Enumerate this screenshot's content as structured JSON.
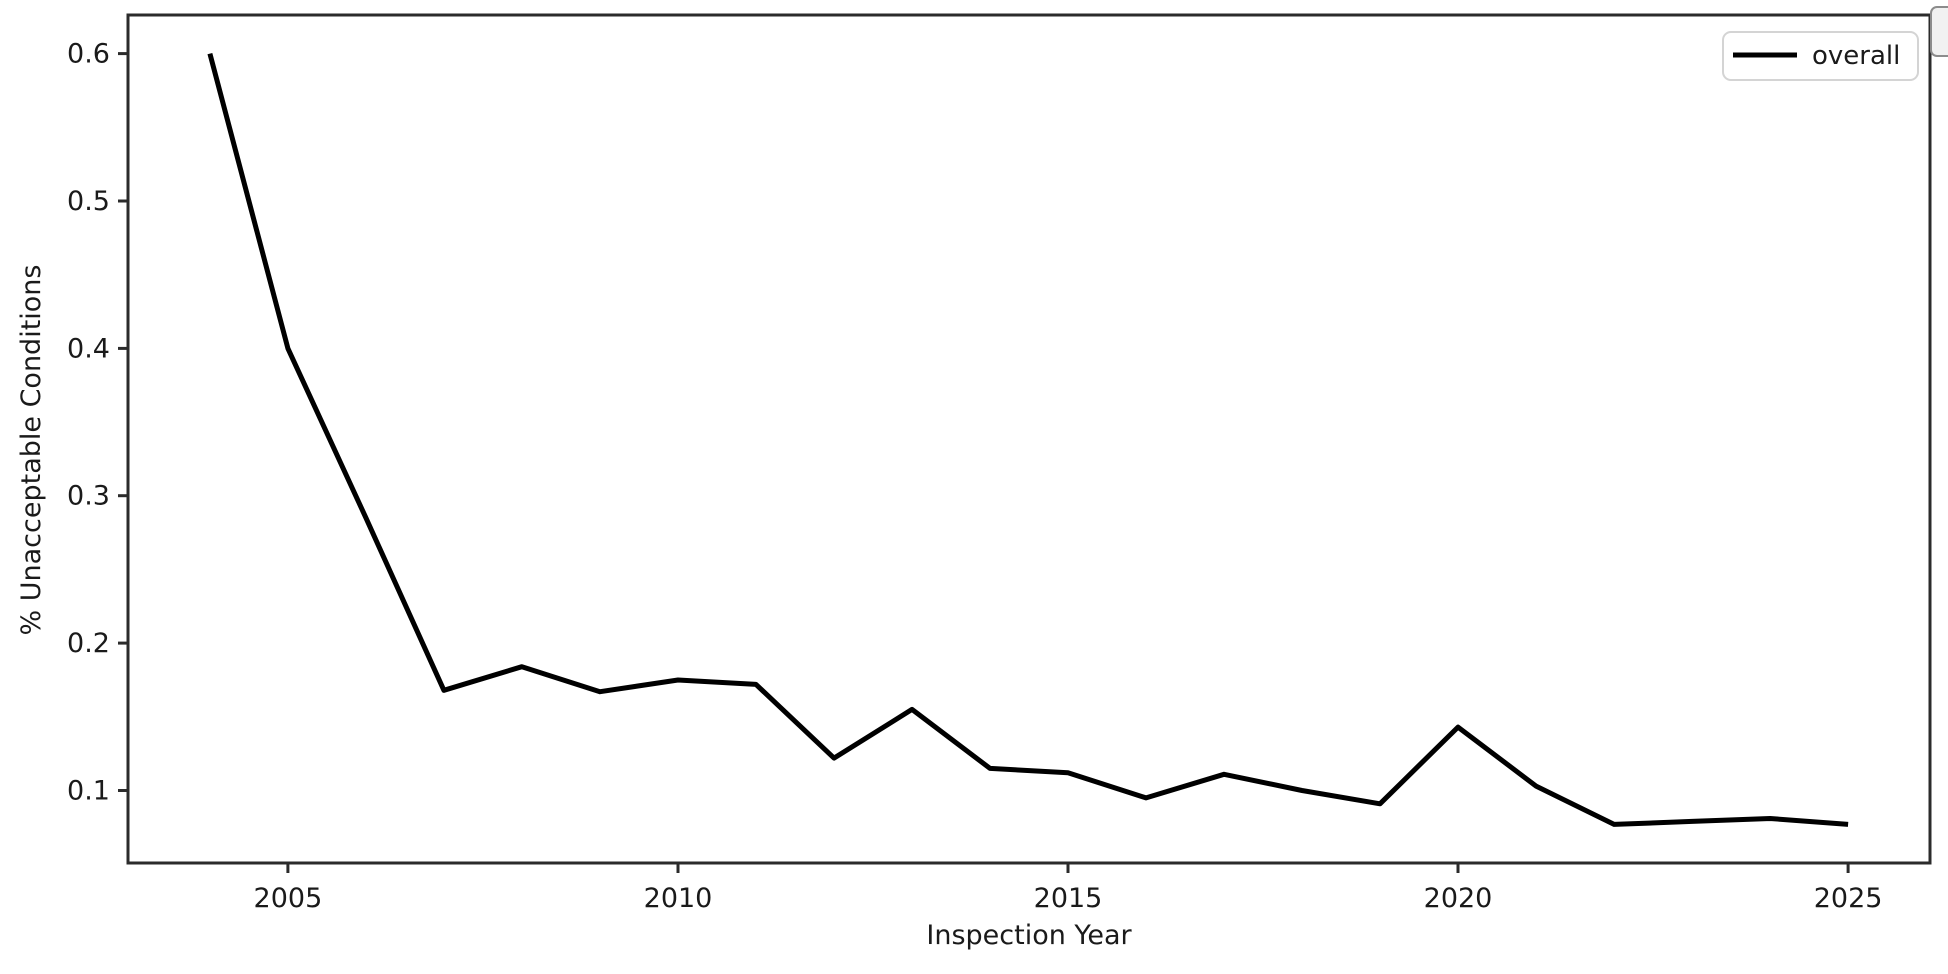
{
  "figure": {
    "background": "#ffffff",
    "text_color": "#1a1a1a",
    "spine_color": "#2b2b2b"
  },
  "chart_data": {
    "type": "line",
    "title": "",
    "xlabel": "Inspection Year",
    "ylabel": "% Unacceptable Conditions",
    "x": [
      2004,
      2005,
      2006,
      2007,
      2008,
      2009,
      2010,
      2011,
      2012,
      2013,
      2014,
      2015,
      2016,
      2017,
      2018,
      2019,
      2020,
      2021,
      2022,
      2023,
      2024,
      2025
    ],
    "series": [
      {
        "name": "overall",
        "color": "#000000",
        "values": [
          0.6,
          0.4,
          0.285,
          0.168,
          0.184,
          0.167,
          0.175,
          0.172,
          0.122,
          0.155,
          0.115,
          0.112,
          0.095,
          0.111,
          0.1,
          0.091,
          0.143,
          0.103,
          0.077,
          0.079,
          0.081,
          0.077
        ]
      }
    ],
    "x_ticks": [
      2005,
      2010,
      2015,
      2020,
      2025
    ],
    "y_ticks": [
      0.1,
      0.2,
      0.3,
      0.4,
      0.5,
      0.6
    ],
    "xlim": [
      2002.95,
      2026.05
    ],
    "ylim": [
      0.0508,
      0.6262
    ],
    "grid": false,
    "legend": {
      "position": "upper right",
      "entries": [
        "overall"
      ]
    }
  }
}
